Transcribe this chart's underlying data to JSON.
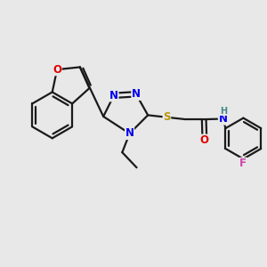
{
  "bg_color": "#e8e8e8",
  "bond_color": "#1a1a1a",
  "bond_width": 1.6,
  "atom_colors": {
    "N": "#0000ee",
    "O": "#dd0000",
    "S": "#b8960c",
    "F": "#cc44aa",
    "H": "#448888",
    "C": "#1a1a1a"
  },
  "font_size": 8.5
}
